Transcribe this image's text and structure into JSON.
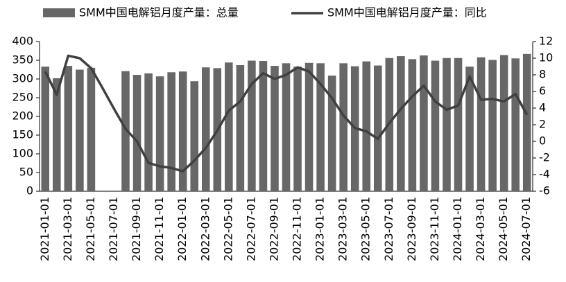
{
  "chart_data": {
    "type": "bar_line",
    "categories": [
      "2021-01-01",
      null,
      "2021-03-01",
      null,
      "2021-05-01",
      null,
      "2021-07-01",
      null,
      "2021-09-01",
      null,
      "2021-11-01",
      null,
      "2022-01-01",
      null,
      "2022-03-01",
      null,
      "2022-05-01",
      null,
      "2022-07-01",
      null,
      "2022-09-01",
      null,
      "2022-11-01",
      null,
      "2023-01-01",
      null,
      "2023-03-01",
      null,
      "2023-05-01",
      null,
      "2023-07-01",
      null,
      "2023-09-01",
      null,
      "2023-11-01",
      null,
      "2024-01-01",
      null,
      "2024-03-01",
      null,
      "2024-05-01",
      null,
      "2024-07-01"
    ],
    "series": [
      {
        "name": "SMM中国电解铝月度产量：总量",
        "type": "bar",
        "color": "#676767",
        "values": [
          333,
          302,
          335,
          325,
          330,
          null,
          null,
          321,
          311,
          315,
          307,
          318,
          320,
          294,
          331,
          329,
          344,
          337,
          349,
          348,
          335,
          342,
          333,
          343,
          342,
          309,
          342,
          334,
          347,
          336,
          356,
          361,
          353,
          363,
          349,
          356,
          356,
          333,
          358,
          351,
          364,
          355,
          367
        ]
      },
      {
        "name": "SMM中国电解铝月度产量：同比",
        "type": "line",
        "axis": "y2",
        "color": "#404040",
        "values": [
          8.4,
          5.6,
          10.3,
          10,
          8.8,
          6.4,
          3.9,
          1.5,
          0,
          -2.6,
          -3,
          -3.2,
          -3.6,
          -2.3,
          -0.8,
          1.3,
          3.7,
          4.8,
          6.9,
          8.2,
          7.5,
          8,
          8.9,
          8.4,
          6.9,
          5.2,
          3.1,
          1.6,
          1.2,
          0.3,
          2.2,
          3.9,
          5.4,
          6.7,
          4.8,
          3.8,
          4.3,
          7.8,
          5,
          5.1,
          4.8,
          5.7,
          3.2
        ]
      }
    ],
    "ylim": [
      0,
      400
    ],
    "yticks": [
      0,
      50,
      100,
      150,
      200,
      250,
      300,
      350,
      400
    ],
    "y2lim": [
      -6,
      12
    ],
    "y2ticks": [
      -6,
      -4,
      -2,
      0,
      2,
      4,
      6,
      8,
      10,
      12
    ],
    "legend": "top"
  }
}
